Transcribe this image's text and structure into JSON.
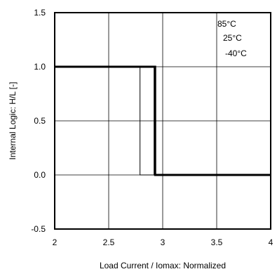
{
  "chart_data": {
    "type": "line",
    "title": "",
    "xlabel": "Load Current / Iomax: Normalized",
    "ylabel": "Internal Logic: H/L [-]",
    "xlim": [
      2,
      4
    ],
    "ylim": [
      -0.5,
      1.5
    ],
    "x_ticks": [
      "2",
      "2.5",
      "3",
      "3.5",
      "4"
    ],
    "x_tick_values": [
      2,
      2.5,
      3,
      3.5,
      4
    ],
    "y_ticks": [
      "1.5",
      "1.0",
      "0.5",
      "0.0",
      "-0.5"
    ],
    "y_tick_values": [
      1.5,
      1.0,
      0.5,
      0.0,
      -0.5
    ],
    "grid": true,
    "legend_position": "top-right",
    "legend": [
      "85°C",
      "25°C",
      "-40°C"
    ],
    "series": [
      {
        "name": "85°C",
        "x": [
          2,
          2.79,
          2.79,
          4
        ],
        "y": [
          1,
          1,
          0,
          0
        ]
      },
      {
        "name": "25°C",
        "x": [
          2,
          2.92,
          2.92,
          4
        ],
        "y": [
          1,
          1,
          0,
          0
        ]
      },
      {
        "name": "-40°C",
        "x": [
          2,
          2.93,
          2.93,
          4
        ],
        "y": [
          1,
          1,
          0,
          0
        ]
      }
    ]
  }
}
